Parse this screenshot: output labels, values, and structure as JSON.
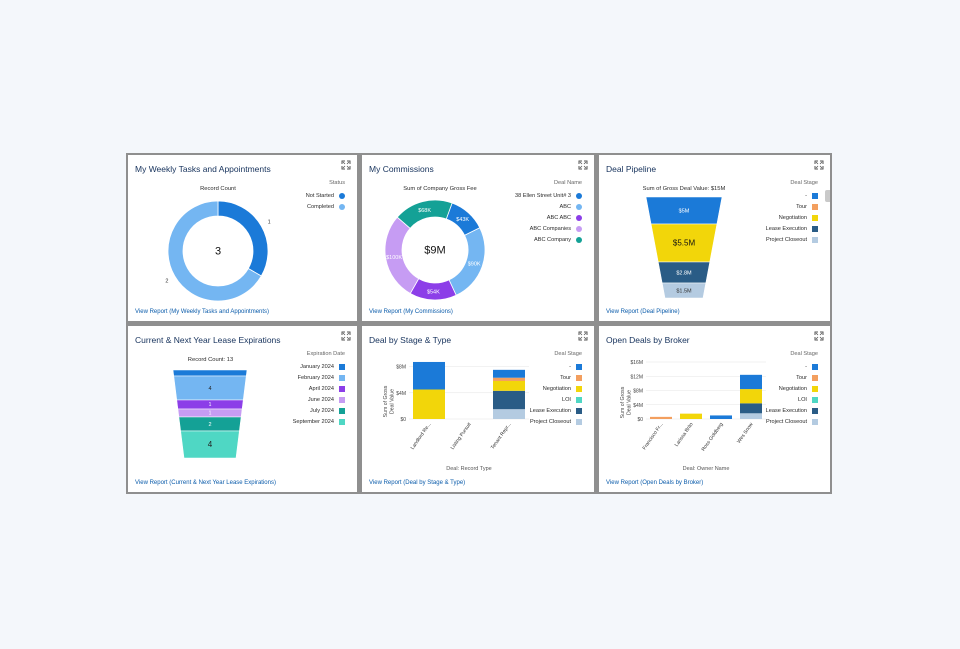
{
  "colors": {
    "blue_dark": "#1b7ad8",
    "blue_light": "#74b6f2",
    "purple": "#8c3ee8",
    "lavender": "#c69cf3",
    "teal": "#14a196",
    "orange": "#f39f5f",
    "yellow": "#f2d60a",
    "navy": "#2a5c86",
    "pale_blue": "#b4cbe1",
    "aqua": "#4fd7c4",
    "link": "#0b5cab",
    "title": "#16325c"
  },
  "cards": [
    {
      "title": "My Weekly Tasks and Appointments",
      "link": "View Report (My Weekly Tasks and Appointments)",
      "chart_title": "Record Count",
      "center_label": "3",
      "legend_title": "Status",
      "legend": [
        "Not Started",
        "Completed"
      ]
    },
    {
      "title": "My Commissions",
      "link": "View Report (My Commissions)",
      "chart_title": "Sum of Company Gross Fee",
      "center_label": "$9M",
      "legend_title": "Deal Name",
      "legend": [
        "38 Ellen Street Unit# 3",
        "ABC",
        "ABC ABC",
        "ABC Companies",
        "ABC Company"
      ]
    },
    {
      "title": "Deal Pipeline",
      "link": "View Report (Deal Pipeline)",
      "chart_title": "Sum of Gross Deal Value: $15M",
      "legend_title": "Deal Stage",
      "legend": [
        "-",
        "Tour",
        "Negotiation",
        "Lease Execution",
        "Project Closeout"
      ]
    },
    {
      "title": "Current & Next Year Lease Expirations",
      "link": "View Report (Current & Next Year Lease Expirations)",
      "chart_title": "Record Count: 13",
      "legend_title": "Expiration Date",
      "legend": [
        "January 2024",
        "February 2024",
        "April 2024",
        "June 2024",
        "July 2024",
        "September 2024"
      ]
    },
    {
      "title": "Deal by Stage & Type",
      "link": "View Report (Deal by Stage & Type)",
      "legend_title": "Deal Stage",
      "legend": [
        "-",
        "Tour",
        "Negotiation",
        "LOI",
        "Lease Execution",
        "Project Closeout"
      ]
    },
    {
      "title": "Open Deals by Broker",
      "link": "View Report (Open Deals by Broker)",
      "legend_title": "Deal Stage",
      "legend": [
        "-",
        "Tour",
        "Negotiation",
        "LOI",
        "Lease Execution",
        "Project Closeout"
      ]
    }
  ],
  "chart_data": [
    {
      "type": "donut",
      "title": "Record Count",
      "center": "3",
      "slices": [
        {
          "name": "Not Started",
          "value": 1,
          "label": "1"
        },
        {
          "name": "Completed",
          "value": 2,
          "label": "2"
        }
      ]
    },
    {
      "type": "donut",
      "title": "Sum of Company Gross Fee",
      "center": "$9M",
      "slices": [
        {
          "name": "38 Ellen Street Unit# 3",
          "value": 43,
          "label": "$43K"
        },
        {
          "name": "ABC",
          "value": 90,
          "label": "$90K"
        },
        {
          "name": "ABC ABC",
          "value": 54,
          "label": "$54K"
        },
        {
          "name": "ABC Companies",
          "value": 100,
          "label": "$100K"
        },
        {
          "name": "ABC Company",
          "value": 68,
          "label": "$68K"
        }
      ]
    },
    {
      "type": "funnel",
      "title": "Sum of Gross Deal Value: $15M",
      "stages": [
        {
          "name": "-",
          "value": 5,
          "label": "$5M"
        },
        {
          "name": "Negotiation",
          "value": 5.5,
          "label": "$5.5M"
        },
        {
          "name": "Lease Execution",
          "value": 2.8,
          "label": "$2.8M"
        },
        {
          "name": "Project Closeout",
          "value": 1.5,
          "label": "$1.5M"
        }
      ]
    },
    {
      "type": "funnel",
      "title": "Record Count: 13",
      "stages": [
        {
          "name": "January 2024",
          "value": 1,
          "label": ""
        },
        {
          "name": "February 2024",
          "value": 4,
          "label": "4"
        },
        {
          "name": "April 2024",
          "value": 1,
          "label": "1"
        },
        {
          "name": "June 2024",
          "value": 1,
          "label": "1"
        },
        {
          "name": "July 2024",
          "value": 2,
          "label": "2"
        },
        {
          "name": "September 2024",
          "value": 4,
          "label": "4"
        }
      ]
    },
    {
      "type": "bar",
      "stacked": true,
      "xlabel": "Deal: Record Type",
      "ylabel": "Sum of Gross Deal Value",
      "yticks": [
        "$0",
        "$4M",
        "$8M"
      ],
      "ylim": [
        0,
        9
      ],
      "categories": [
        "Landlord Re...",
        "Listing Pursuit",
        "Tenant Repr..."
      ],
      "series": [
        {
          "name": "Project Closeout",
          "values": [
            0,
            0,
            1.5
          ]
        },
        {
          "name": "Lease Execution",
          "values": [
            0,
            0,
            2.8
          ]
        },
        {
          "name": "LOI",
          "values": [
            0,
            0,
            0
          ]
        },
        {
          "name": "Negotiation",
          "values": [
            4.5,
            0,
            1.5
          ]
        },
        {
          "name": "Tour",
          "values": [
            0,
            0,
            0.5
          ]
        },
        {
          "name": "-",
          "values": [
            4.2,
            0,
            1.2
          ]
        }
      ]
    },
    {
      "type": "bar",
      "stacked": true,
      "xlabel": "Deal: Owner Name",
      "ylabel": "Sum of Gross Deal Value",
      "yticks": [
        "$0",
        "$4M",
        "$8M",
        "$12M",
        "$16M"
      ],
      "ylim": [
        0,
        16
      ],
      "categories": [
        "Francisco Fr...",
        "Larissa Brito",
        "Ross Goldberg",
        "Wes Snow"
      ],
      "series": [
        {
          "name": "Project Closeout",
          "values": [
            0,
            0,
            0,
            1.6
          ]
        },
        {
          "name": "Lease Execution",
          "values": [
            0,
            0,
            0,
            2.8
          ]
        },
        {
          "name": "LOI",
          "values": [
            0,
            0,
            0,
            0
          ]
        },
        {
          "name": "Negotiation",
          "values": [
            0,
            1.5,
            0,
            4.0
          ]
        },
        {
          "name": "Tour",
          "values": [
            0.6,
            0,
            0,
            0
          ]
        },
        {
          "name": "-",
          "values": [
            0,
            0,
            1.0,
            4.0
          ]
        }
      ]
    }
  ]
}
